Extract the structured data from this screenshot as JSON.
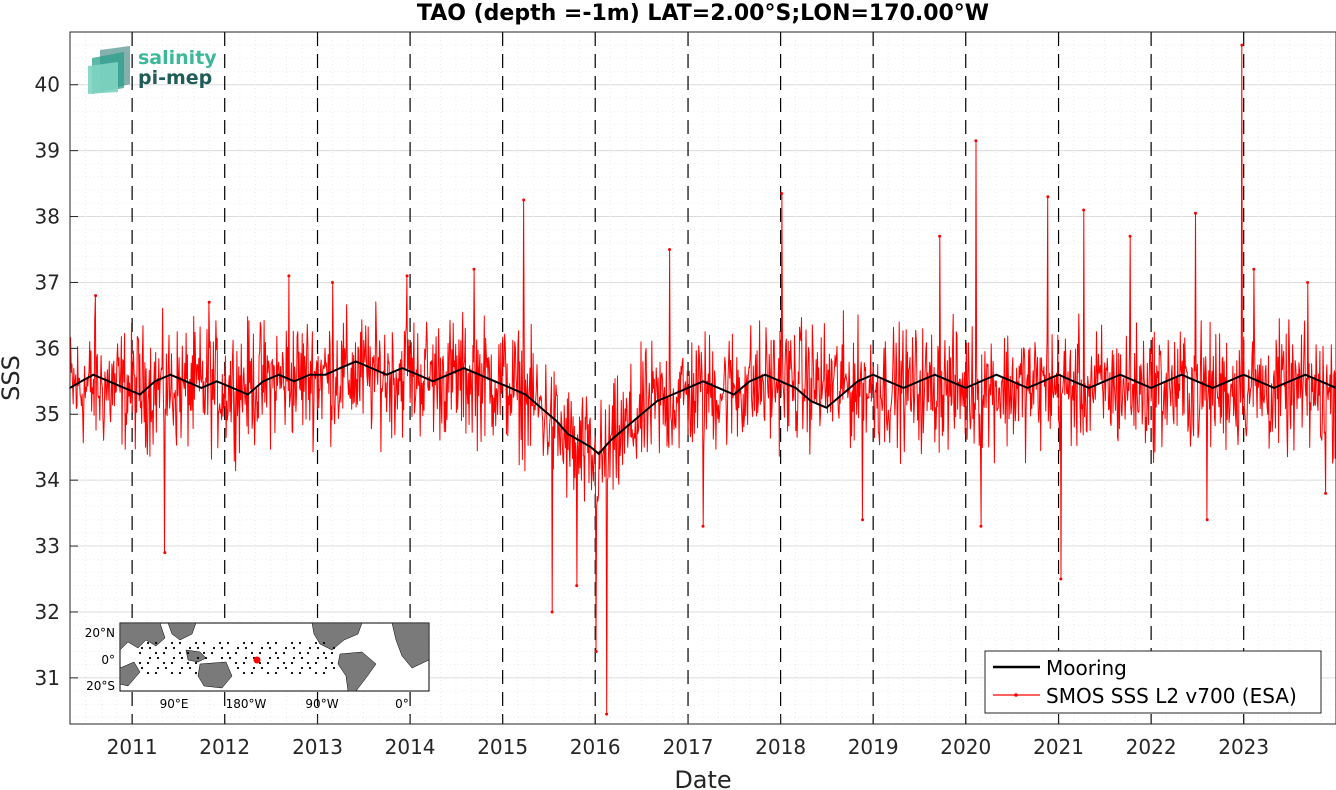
{
  "chart_data": {
    "type": "line",
    "title": "TAO (depth =-1m) LAT=2.00°S;LON=170.00°W",
    "xlabel": "Date",
    "ylabel": "SSS",
    "xlim": [
      "2010-05-01",
      "2023-12-31"
    ],
    "ylim": [
      30.3,
      40.8
    ],
    "xticks": [
      {
        "date": "2011-01-01",
        "label": "2011"
      },
      {
        "date": "2012-01-01",
        "label": "2012"
      },
      {
        "date": "2013-01-01",
        "label": "2013"
      },
      {
        "date": "2014-01-01",
        "label": "2014"
      },
      {
        "date": "2015-01-01",
        "label": "2015"
      },
      {
        "date": "2016-01-01",
        "label": "2016"
      },
      {
        "date": "2017-01-01",
        "label": "2017"
      },
      {
        "date": "2018-01-01",
        "label": "2018"
      },
      {
        "date": "2019-01-01",
        "label": "2019"
      },
      {
        "date": "2020-01-01",
        "label": "2020"
      },
      {
        "date": "2021-01-01",
        "label": "2021"
      },
      {
        "date": "2022-01-01",
        "label": "2022"
      },
      {
        "date": "2023-01-01",
        "label": "2023"
      }
    ],
    "yticks": [
      31,
      32,
      33,
      34,
      35,
      36,
      37,
      38,
      39,
      40
    ],
    "grid": true,
    "year_boundaries": "dashed",
    "legend_position": "bottom-right",
    "series": [
      {
        "name": "Mooring",
        "color": "#000000",
        "points": [
          [
            "2010-05-01",
            35.4
          ],
          [
            "2010-06-15",
            35.5
          ],
          [
            "2010-08-01",
            35.6
          ],
          [
            "2010-10-01",
            35.5
          ],
          [
            "2010-12-01",
            35.4
          ],
          [
            "2011-02-01",
            35.3
          ],
          [
            "2011-04-01",
            35.5
          ],
          [
            "2011-06-01",
            35.6
          ],
          [
            "2011-08-01",
            35.5
          ],
          [
            "2011-10-01",
            35.4
          ],
          [
            "2011-12-01",
            35.5
          ],
          [
            "2012-02-01",
            35.4
          ],
          [
            "2012-04-01",
            35.3
          ],
          [
            "2012-06-01",
            35.5
          ],
          [
            "2012-08-01",
            35.6
          ],
          [
            "2012-10-01",
            35.5
          ],
          [
            "2012-12-01",
            35.6
          ],
          [
            "2013-02-01",
            35.6
          ],
          [
            "2013-04-01",
            35.7
          ],
          [
            "2013-06-01",
            35.8
          ],
          [
            "2013-08-01",
            35.7
          ],
          [
            "2013-10-01",
            35.6
          ],
          [
            "2013-12-01",
            35.7
          ],
          [
            "2014-02-01",
            35.6
          ],
          [
            "2014-04-01",
            35.5
          ],
          [
            "2014-06-01",
            35.6
          ],
          [
            "2014-08-01",
            35.7
          ],
          [
            "2014-10-01",
            35.6
          ],
          [
            "2014-12-01",
            35.5
          ],
          [
            "2015-02-01",
            35.4
          ],
          [
            "2015-04-01",
            35.3
          ],
          [
            "2015-06-01",
            35.1
          ],
          [
            "2015-08-01",
            34.9
          ],
          [
            "2015-09-15",
            34.7
          ],
          [
            "2015-11-01",
            34.6
          ],
          [
            "2015-12-15",
            34.5
          ],
          [
            "2016-01-15",
            34.4
          ],
          [
            "2016-03-01",
            34.6
          ],
          [
            "2016-05-01",
            34.8
          ],
          [
            "2016-07-01",
            35.0
          ],
          [
            "2016-09-01",
            35.2
          ],
          [
            "2016-11-01",
            35.3
          ],
          [
            "2017-01-01",
            35.4
          ],
          [
            "2017-03-01",
            35.5
          ],
          [
            "2017-05-01",
            35.4
          ],
          [
            "2017-07-01",
            35.3
          ],
          [
            "2017-09-01",
            35.5
          ],
          [
            "2017-11-01",
            35.6
          ],
          [
            "2018-01-01",
            35.5
          ],
          [
            "2018-03-01",
            35.4
          ],
          [
            "2018-05-01",
            35.2
          ],
          [
            "2018-07-01",
            35.1
          ],
          [
            "2018-09-01",
            35.3
          ],
          [
            "2018-11-01",
            35.5
          ],
          [
            "2019-01-01",
            35.6
          ],
          [
            "2019-03-01",
            35.5
          ],
          [
            "2019-05-01",
            35.4
          ],
          [
            "2019-07-01",
            35.5
          ],
          [
            "2019-09-01",
            35.6
          ],
          [
            "2019-11-01",
            35.5
          ],
          [
            "2020-01-01",
            35.4
          ],
          [
            "2020-03-01",
            35.5
          ],
          [
            "2020-05-01",
            35.6
          ],
          [
            "2020-07-01",
            35.5
          ],
          [
            "2020-09-01",
            35.4
          ],
          [
            "2020-11-01",
            35.5
          ],
          [
            "2021-01-01",
            35.6
          ],
          [
            "2021-03-01",
            35.5
          ],
          [
            "2021-05-01",
            35.4
          ],
          [
            "2021-07-01",
            35.5
          ],
          [
            "2021-09-01",
            35.6
          ],
          [
            "2021-11-01",
            35.5
          ],
          [
            "2022-01-01",
            35.4
          ],
          [
            "2022-03-01",
            35.5
          ],
          [
            "2022-05-01",
            35.6
          ],
          [
            "2022-07-01",
            35.5
          ],
          [
            "2022-09-01",
            35.4
          ],
          [
            "2022-11-01",
            35.5
          ],
          [
            "2023-01-01",
            35.6
          ],
          [
            "2023-03-01",
            35.5
          ],
          [
            "2023-05-01",
            35.4
          ],
          [
            "2023-07-01",
            35.5
          ],
          [
            "2023-09-01",
            35.6
          ],
          [
            "2023-11-01",
            35.5
          ],
          [
            "2023-12-31",
            35.4
          ]
        ]
      },
      {
        "name": "SMOS SSS L2 v700 (ESA)",
        "color": "#ff0000",
        "marker": "dot",
        "noise_amplitude": 0.45,
        "points_per_year": 146,
        "envelope": [
          [
            "2010-05-01",
            35.4
          ],
          [
            "2011-01-01",
            35.4
          ],
          [
            "2012-01-01",
            35.4
          ],
          [
            "2013-01-01",
            35.6
          ],
          [
            "2014-01-01",
            35.6
          ],
          [
            "2015-01-01",
            35.5
          ],
          [
            "2015-06-01",
            35.1
          ],
          [
            "2015-09-01",
            34.6
          ],
          [
            "2016-01-15",
            34.2
          ],
          [
            "2016-04-01",
            34.6
          ],
          [
            "2016-08-01",
            35.1
          ],
          [
            "2017-01-01",
            35.3
          ],
          [
            "2018-01-01",
            35.5
          ],
          [
            "2019-01-01",
            35.4
          ],
          [
            "2020-01-01",
            35.4
          ],
          [
            "2021-01-01",
            35.4
          ],
          [
            "2022-01-01",
            35.4
          ],
          [
            "2023-01-01",
            35.4
          ],
          [
            "2023-12-31",
            35.3
          ]
        ],
        "peaks": [
          [
            "2010-08-10",
            36.8
          ],
          [
            "2011-05-10",
            32.9
          ],
          [
            "2011-11-01",
            36.7
          ],
          [
            "2012-09-10",
            37.1
          ],
          [
            "2013-03-01",
            37.0
          ],
          [
            "2013-12-20",
            37.1
          ],
          [
            "2014-09-10",
            37.2
          ],
          [
            "2015-03-25",
            38.25
          ],
          [
            "2015-07-15",
            32.0
          ],
          [
            "2015-10-20",
            32.4
          ],
          [
            "2016-01-05",
            31.4
          ],
          [
            "2016-02-15",
            30.45
          ],
          [
            "2016-10-20",
            37.5
          ],
          [
            "2017-03-01",
            33.3
          ],
          [
            "2018-01-05",
            38.35
          ],
          [
            "2018-11-20",
            33.4
          ],
          [
            "2019-09-20",
            37.7
          ],
          [
            "2020-02-10",
            39.15
          ],
          [
            "2020-03-01",
            33.3
          ],
          [
            "2020-11-20",
            38.3
          ],
          [
            "2021-01-10",
            32.5
          ],
          [
            "2021-04-10",
            38.1
          ],
          [
            "2021-10-10",
            37.7
          ],
          [
            "2022-06-25",
            38.05
          ],
          [
            "2022-08-10",
            33.4
          ],
          [
            "2022-12-25",
            40.6
          ],
          [
            "2023-02-10",
            37.2
          ],
          [
            "2023-09-10",
            37.0
          ],
          [
            "2023-11-20",
            33.8
          ]
        ]
      }
    ],
    "inset_map": {
      "lat_labels": [
        "20°N",
        "0°",
        "20°S"
      ],
      "lon_labels": [
        "90°E",
        "180°W",
        "90°W",
        "0°"
      ],
      "marker_color": "#ff0000"
    }
  },
  "logo": {
    "line1": "salinity",
    "line2": "pi-mep"
  },
  "colors": {
    "mooring": "#000000",
    "satellite": "#ff0000",
    "land": "#7a7a7a",
    "logo_dark": "#1f5c5a",
    "logo_light": "#3cb89a"
  }
}
